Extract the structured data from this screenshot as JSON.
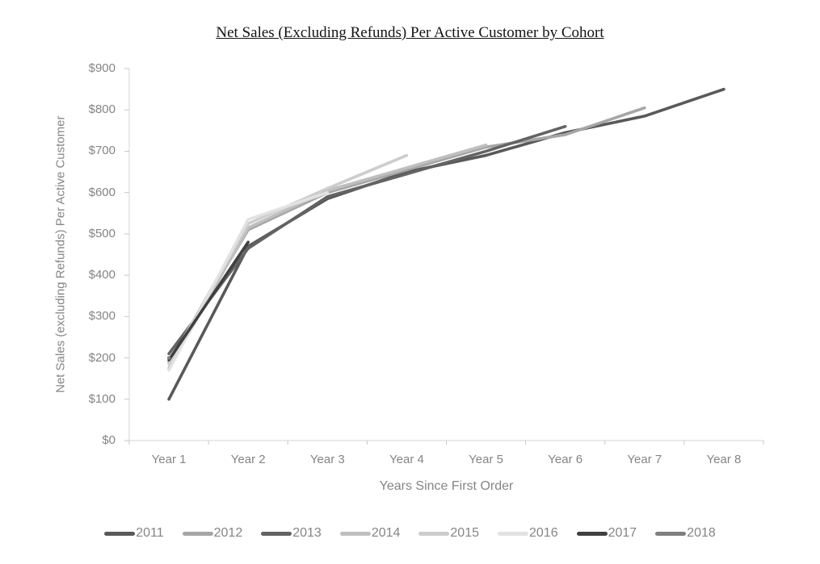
{
  "title": "Net Sales (Excluding Refunds) Per Active Customer by Cohort",
  "chart_data": {
    "type": "line",
    "title": "Net Sales (Excluding Refunds) Per Active Customer by Cohort",
    "xlabel": "Years Since First Order",
    "ylabel": "Net Sales (excluding Refunds) Per Active Customer",
    "categories": [
      "Year 1",
      "Year 2",
      "Year 3",
      "Year 4",
      "Year 5",
      "Year 6",
      "Year 7",
      "Year 8"
    ],
    "ylim": [
      0,
      900
    ],
    "y_tick_step": 100,
    "y_tick_prefix": "$",
    "y_ticks": [
      0,
      100,
      200,
      300,
      400,
      500,
      600,
      700,
      800,
      900
    ],
    "grid": false,
    "legend_position": "bottom",
    "axis_color": "#d6d6d6",
    "tick_color": "#c6c6c6",
    "series": [
      {
        "name": "2011",
        "color": "#595959",
        "values": [
          100,
          470,
          585,
          650,
          690,
          745,
          785,
          850
        ]
      },
      {
        "name": "2012",
        "color": "#a6a6a6",
        "values": [
          190,
          510,
          600,
          655,
          710,
          740,
          805
        ]
      },
      {
        "name": "2013",
        "color": "#636363",
        "values": [
          210,
          465,
          590,
          645,
          700,
          760
        ]
      },
      {
        "name": "2014",
        "color": "#bfbfbf",
        "values": [
          175,
          515,
          605,
          660,
          715
        ]
      },
      {
        "name": "2015",
        "color": "#cdcdcd",
        "values": [
          185,
          525,
          610,
          690
        ]
      },
      {
        "name": "2016",
        "color": "#e2e2e2",
        "values": [
          170,
          535,
          600
        ]
      },
      {
        "name": "2017",
        "color": "#404040",
        "values": [
          195,
          480
        ]
      },
      {
        "name": "2018",
        "color": "#7f7f7f",
        "values": [
          200
        ]
      }
    ]
  }
}
